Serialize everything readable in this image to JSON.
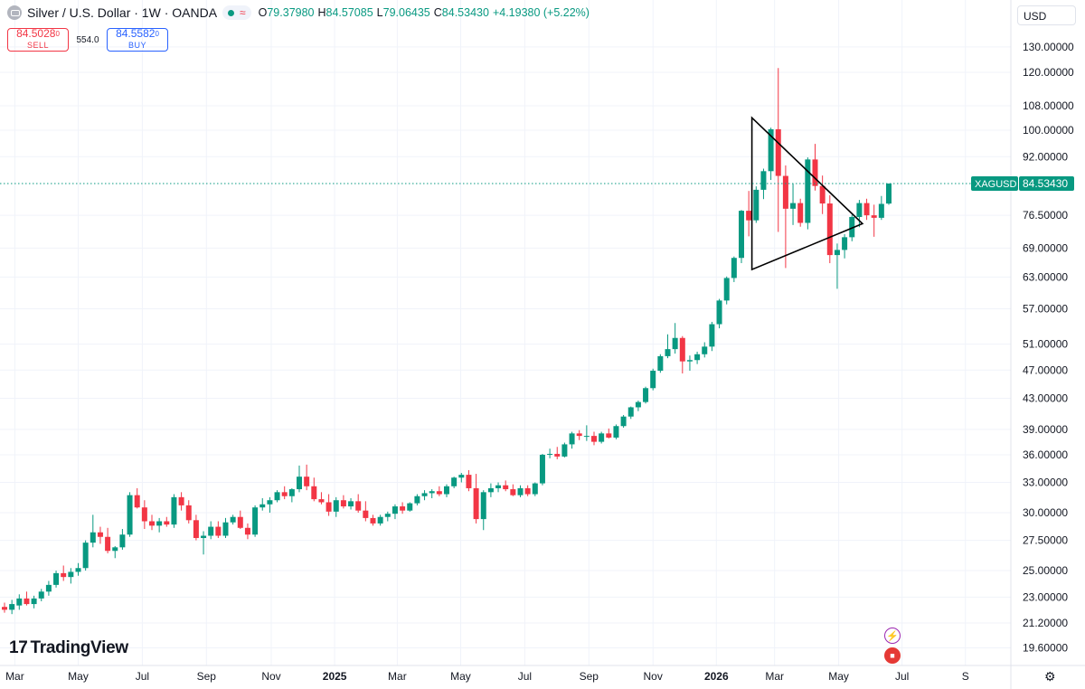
{
  "header": {
    "title": "Silver / U.S. Dollar · 1W · OANDA",
    "ohlc": [
      {
        "label": "O",
        "value": "79.37980"
      },
      {
        "label": "H",
        "value": "84.57085"
      },
      {
        "label": "L",
        "value": "79.06435"
      },
      {
        "label": "C",
        "value": "84.53430"
      }
    ],
    "change": "+4.19380 (+5.22%)",
    "sell_price": "84.5028",
    "sell_price_sup": "0",
    "sell_label": "SELL",
    "spread": "554.0",
    "buy_price": "84.5582",
    "buy_price_sup": "0",
    "buy_label": "BUY",
    "currency": "USD"
  },
  "branding": {
    "logo_text": "TradingView"
  },
  "colors": {
    "up": "#089981",
    "down": "#f23645",
    "line": "#000000",
    "accent": "#2962ff"
  },
  "chart_data": {
    "type": "candlestick",
    "symbol": "XAGUSD",
    "last_price": 84.5343,
    "last_price_label": "84.53430",
    "y_scale": "log",
    "y_ticks": [
      19.6,
      21.2,
      23.0,
      25.0,
      27.5,
      30.0,
      33.0,
      36.0,
      39.0,
      43.0,
      47.0,
      51.0,
      57.0,
      63.0,
      69.0,
      76.5,
      84.5343,
      92.0,
      100.0,
      108.0,
      120.0,
      130.0
    ],
    "y_tick_labels": [
      "19.60000",
      "21.20000",
      "23.00000",
      "25.00000",
      "27.50000",
      "30.00000",
      "33.00000",
      "36.00000",
      "39.00000",
      "43.00000",
      "47.00000",
      "51.00000",
      "57.00000",
      "63.00000",
      "69.00000",
      "76.50000",
      "84.53430",
      "92.00000",
      "100.00000",
      "108.00000",
      "120.00000",
      "130.00000"
    ],
    "x_ticks": [
      "Mar",
      "May",
      "Jul",
      "Sep",
      "Nov",
      "2025",
      "Mar",
      "May",
      "Jul",
      "Sep",
      "Nov",
      "2026",
      "Mar",
      "May",
      "Jul",
      "S"
    ],
    "x_tick_bold": [
      "2025",
      "2026"
    ],
    "ohlc_series": [
      [
        22.3,
        22.6,
        21.9,
        22.1
      ],
      [
        22.1,
        22.8,
        21.8,
        22.5
      ],
      [
        22.4,
        23.2,
        22.1,
        22.9
      ],
      [
        22.9,
        23.4,
        22.4,
        22.5
      ],
      [
        22.5,
        23.1,
        22.2,
        22.9
      ],
      [
        22.9,
        23.6,
        22.7,
        23.4
      ],
      [
        23.4,
        24.2,
        23.1,
        23.9
      ],
      [
        23.9,
        25.0,
        23.7,
        24.8
      ],
      [
        24.8,
        25.4,
        24.2,
        24.5
      ],
      [
        24.5,
        25.2,
        24.0,
        24.9
      ],
      [
        24.9,
        25.6,
        24.6,
        25.2
      ],
      [
        25.2,
        27.5,
        25.0,
        27.3
      ],
      [
        27.3,
        29.8,
        26.9,
        28.2
      ],
      [
        28.2,
        28.7,
        27.2,
        27.8
      ],
      [
        27.8,
        28.6,
        26.4,
        26.6
      ],
      [
        26.6,
        27.0,
        26.0,
        26.9
      ],
      [
        26.9,
        28.5,
        26.7,
        28.0
      ],
      [
        28.0,
        32.0,
        27.8,
        31.7
      ],
      [
        31.7,
        32.4,
        30.4,
        30.5
      ],
      [
        30.5,
        31.2,
        28.5,
        29.2
      ],
      [
        29.2,
        29.8,
        28.4,
        28.8
      ],
      [
        28.8,
        29.5,
        28.2,
        29.2
      ],
      [
        29.2,
        29.6,
        28.7,
        28.9
      ],
      [
        28.9,
        31.8,
        28.6,
        31.5
      ],
      [
        31.5,
        32.0,
        30.2,
        30.7
      ],
      [
        30.7,
        31.2,
        29.0,
        29.3
      ],
      [
        29.3,
        29.8,
        27.5,
        27.7
      ],
      [
        27.7,
        28.3,
        26.3,
        27.9
      ],
      [
        27.9,
        29.2,
        27.6,
        28.7
      ],
      [
        28.7,
        29.2,
        27.7,
        27.9
      ],
      [
        27.9,
        29.5,
        27.7,
        29.1
      ],
      [
        29.1,
        29.8,
        28.9,
        29.6
      ],
      [
        29.6,
        30.2,
        28.5,
        28.6
      ],
      [
        28.6,
        29.0,
        27.6,
        28.0
      ],
      [
        28.0,
        30.7,
        27.8,
        30.5
      ],
      [
        30.5,
        31.4,
        30.2,
        30.8
      ],
      [
        30.8,
        31.5,
        30.0,
        31.2
      ],
      [
        31.2,
        32.2,
        31.0,
        32.0
      ],
      [
        32.0,
        32.6,
        31.3,
        31.6
      ],
      [
        31.6,
        32.4,
        31.0,
        32.3
      ],
      [
        32.3,
        34.8,
        32.0,
        33.6
      ],
      [
        33.6,
        34.9,
        32.2,
        32.6
      ],
      [
        32.6,
        33.5,
        31.1,
        31.3
      ],
      [
        31.3,
        32.0,
        30.8,
        31.0
      ],
      [
        31.0,
        31.8,
        29.7,
        30.1
      ],
      [
        30.1,
        31.5,
        29.6,
        31.2
      ],
      [
        31.2,
        31.7,
        30.4,
        30.6
      ],
      [
        30.6,
        31.4,
        30.3,
        31.1
      ],
      [
        31.1,
        31.8,
        30.0,
        30.2
      ],
      [
        30.2,
        31.1,
        29.2,
        29.5
      ],
      [
        29.5,
        29.8,
        28.8,
        29.0
      ],
      [
        29.0,
        29.8,
        28.8,
        29.6
      ],
      [
        29.6,
        30.1,
        29.2,
        29.9
      ],
      [
        29.9,
        30.8,
        29.4,
        30.6
      ],
      [
        30.6,
        31.0,
        29.9,
        30.2
      ],
      [
        30.2,
        31.0,
        30.1,
        30.9
      ],
      [
        30.9,
        31.8,
        30.7,
        31.6
      ],
      [
        31.6,
        32.2,
        31.2,
        31.9
      ],
      [
        31.9,
        32.3,
        31.4,
        32.1
      ],
      [
        32.1,
        32.6,
        31.6,
        31.8
      ],
      [
        31.8,
        32.8,
        31.5,
        32.6
      ],
      [
        32.6,
        33.6,
        32.4,
        33.5
      ],
      [
        33.5,
        34.0,
        33.0,
        33.8
      ],
      [
        33.8,
        34.3,
        32.1,
        32.4
      ],
      [
        32.4,
        33.9,
        29.0,
        29.4
      ],
      [
        29.4,
        32.2,
        28.4,
        32.0
      ],
      [
        32.0,
        32.9,
        31.5,
        32.4
      ],
      [
        32.4,
        33.0,
        32.0,
        32.7
      ],
      [
        32.7,
        33.2,
        32.1,
        32.3
      ],
      [
        32.3,
        32.8,
        31.6,
        31.7
      ],
      [
        31.7,
        32.7,
        31.5,
        32.4
      ],
      [
        32.4,
        32.7,
        31.6,
        31.8
      ],
      [
        31.8,
        33.0,
        31.6,
        32.9
      ],
      [
        32.9,
        36.1,
        32.7,
        36.0
      ],
      [
        36.0,
        36.7,
        35.6,
        36.1
      ],
      [
        36.1,
        36.9,
        35.5,
        35.8
      ],
      [
        35.8,
        37.4,
        35.7,
        37.2
      ],
      [
        37.2,
        38.7,
        36.7,
        38.5
      ],
      [
        38.5,
        38.9,
        37.7,
        38.2
      ],
      [
        38.2,
        39.5,
        37.6,
        38.2
      ],
      [
        38.2,
        38.7,
        37.1,
        37.5
      ],
      [
        37.5,
        38.7,
        37.3,
        38.5
      ],
      [
        38.5,
        39.1,
        37.9,
        38.0
      ],
      [
        38.0,
        39.6,
        37.8,
        39.4
      ],
      [
        39.4,
        40.8,
        39.2,
        40.6
      ],
      [
        40.6,
        41.9,
        40.3,
        41.8
      ],
      [
        41.8,
        42.7,
        41.3,
        42.5
      ],
      [
        42.5,
        44.6,
        42.3,
        44.4
      ],
      [
        44.4,
        47.2,
        44.1,
        46.9
      ],
      [
        46.9,
        49.4,
        46.6,
        49.1
      ],
      [
        49.1,
        52.6,
        48.8,
        50.2
      ],
      [
        50.2,
        54.5,
        49.5,
        52.0
      ],
      [
        52.0,
        52.3,
        46.5,
        48.3
      ],
      [
        48.3,
        49.2,
        46.9,
        48.5
      ],
      [
        48.5,
        49.8,
        47.9,
        49.4
      ],
      [
        49.4,
        51.3,
        48.9,
        50.6
      ],
      [
        50.6,
        54.7,
        49.9,
        54.3
      ],
      [
        54.3,
        58.8,
        53.6,
        58.5
      ],
      [
        58.5,
        63.1,
        57.8,
        62.8
      ],
      [
        62.8,
        67.2,
        62.0,
        66.9
      ],
      [
        66.9,
        77.8,
        65.8,
        77.6
      ],
      [
        77.6,
        82.6,
        71.6,
        75.3
      ],
      [
        75.3,
        83.8,
        74.7,
        82.9
      ],
      [
        82.9,
        88.6,
        80.5,
        87.9
      ],
      [
        87.9,
        100.8,
        85.5,
        100.3
      ],
      [
        100.3,
        121.6,
        72.6,
        86.6
      ],
      [
        86.6,
        89.5,
        64.8,
        78.1
      ],
      [
        78.1,
        84.6,
        74.2,
        79.5
      ],
      [
        79.5,
        80.6,
        73.8,
        74.7
      ],
      [
        74.7,
        91.8,
        73.2,
        91.2
      ],
      [
        91.2,
        95.8,
        82.7,
        83.9
      ],
      [
        83.9,
        86.7,
        76.8,
        79.4
      ],
      [
        79.4,
        81.5,
        65.8,
        67.5
      ],
      [
        67.5,
        70.0,
        60.7,
        68.6
      ],
      [
        68.6,
        72.1,
        66.8,
        71.4
      ],
      [
        71.4,
        76.6,
        70.5,
        76.1
      ],
      [
        76.1,
        80.3,
        73.7,
        79.5
      ],
      [
        79.5,
        80.6,
        75.4,
        76.5
      ],
      [
        76.5,
        79.1,
        71.5,
        75.9
      ],
      [
        75.9,
        81.3,
        75.4,
        79.3
      ],
      [
        79.38,
        84.57,
        79.06,
        84.53
      ]
    ],
    "annotations": {
      "triangle": [
        [
          "2026-01-29",
          104.0
        ],
        [
          "2026-05-14",
          74.5
        ],
        [
          "2026-01-29",
          64.5
        ]
      ]
    }
  }
}
